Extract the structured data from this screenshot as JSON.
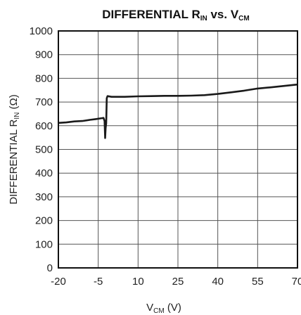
{
  "chart_data": {
    "type": "line",
    "title": {
      "main": "DIFFERENTIAL R",
      "main_sub": "IN",
      "mid": " vs. V",
      "mid_sub": "CM"
    },
    "xlabel": {
      "main": "V",
      "sub": "CM",
      "suffix": " (V)"
    },
    "ylabel": {
      "main": "DIFFERENTIAL R",
      "sub": "IN",
      "suffix": " (Ω)"
    },
    "xlim": [
      -20,
      70
    ],
    "ylim": [
      0,
      1000
    ],
    "x_ticks": [
      -20,
      -5,
      10,
      25,
      40,
      55,
      70
    ],
    "x_tick_labels": [
      "-20",
      "-5",
      "10",
      "25",
      "40",
      "55",
      "70"
    ],
    "y_ticks": [
      0,
      100,
      200,
      300,
      400,
      500,
      600,
      700,
      800,
      900,
      1000
    ],
    "y_tick_labels": [
      "0",
      "100",
      "200",
      "300",
      "400",
      "500",
      "600",
      "700",
      "800",
      "900",
      "1000"
    ],
    "grid": true,
    "series": [
      {
        "color": "#1a1a1a",
        "points": [
          [
            -20,
            612
          ],
          [
            -17,
            614
          ],
          [
            -14,
            618
          ],
          [
            -11,
            620
          ],
          [
            -8,
            625
          ],
          [
            -6,
            628
          ],
          [
            -3.5,
            632
          ],
          [
            -3,
            633
          ],
          [
            -2.6,
            620
          ],
          [
            -2.4,
            548
          ],
          [
            -2.2,
            590
          ],
          [
            -2.0,
            610
          ],
          [
            -1.8,
            716
          ],
          [
            -1.5,
            725
          ],
          [
            0,
            722
          ],
          [
            5,
            722
          ],
          [
            10,
            724
          ],
          [
            15,
            725
          ],
          [
            20,
            726
          ],
          [
            25,
            726
          ],
          [
            30,
            727
          ],
          [
            35,
            729
          ],
          [
            40,
            734
          ],
          [
            45,
            741
          ],
          [
            50,
            748
          ],
          [
            55,
            757
          ],
          [
            60,
            762
          ],
          [
            65,
            768
          ],
          [
            70,
            774
          ]
        ]
      }
    ]
  }
}
